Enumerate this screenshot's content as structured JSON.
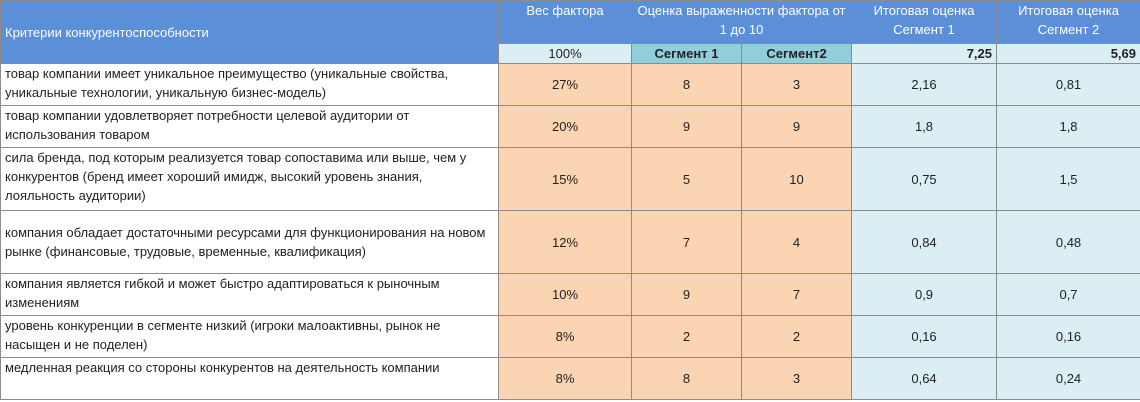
{
  "header": {
    "criteria": "Критерии конкурентоспособности",
    "weight": "Вес фактора",
    "score": "Оценка выраженности фактора от 1 до 10",
    "total1": "Итоговая оценка Сегмент 1",
    "total2": "Итоговая оценка Сегмент 2"
  },
  "subheader": {
    "weight_total": "100%",
    "seg1": "Сегмент 1",
    "seg2": "Сегмент2",
    "total1": "7,25",
    "total2": "5,69"
  },
  "rows": [
    {
      "criterion": "товар компании имеет уникальное преимущество  (уникальные свойства, уникальные технологии, уникальную бизнес-модель)",
      "weight": "27%",
      "s1": "8",
      "s2": "3",
      "t1": "2,16",
      "t2": "0,81"
    },
    {
      "criterion": "товар компании удовлетворяет потребности целевой аудитории от использования товаром",
      "weight": "20%",
      "s1": "9",
      "s2": "9",
      "t1": "1,8",
      "t2": "1,8"
    },
    {
      "criterion": "сила бренда, под которым реализуется товар сопоставима или выше, чем у конкурентов  (бренд имеет хороший имидж, высокий уровень знания, лояльность аудитории)",
      "weight": "15%",
      "s1": "5",
      "s2": "10",
      "t1": "0,75",
      "t2": "1,5"
    },
    {
      "criterion": "компания обладает достаточными ресурсами для функционирования на новом рынке (финансовые, трудовые, временные, квалификация)",
      "weight": "12%",
      "s1": "7",
      "s2": "4",
      "t1": "0,84",
      "t2": "0,48"
    },
    {
      "criterion": "компания является гибкой и может быстро адаптироваться к рыночным изменениям",
      "weight": "10%",
      "s1": "9",
      "s2": "7",
      "t1": "0,9",
      "t2": "0,7"
    },
    {
      "criterion": "уровень конкуренции в сегменте низкий (игроки малоактивны, рынок не насыщен и не поделен)",
      "weight": "8%",
      "s1": "2",
      "s2": "2",
      "t1": "0,16",
      "t2": "0,16"
    },
    {
      "criterion": "медленная реакция со стороны конкурентов на деятельность компании",
      "weight": "8%",
      "s1": "8",
      "s2": "3",
      "t1": "0,64",
      "t2": "0,24"
    }
  ]
}
